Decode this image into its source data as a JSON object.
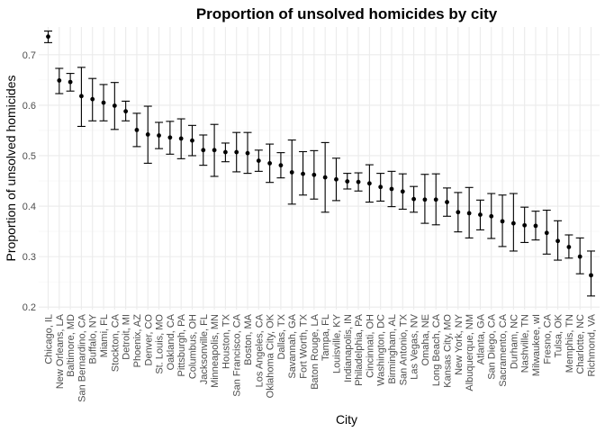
{
  "chart_data": {
    "type": "scatter",
    "title": "Proportion of unsolved homicides by city",
    "xlabel": "City",
    "ylabel": "Proportion of unsolved homicides",
    "ylim": [
      0.195,
      0.755
    ],
    "yticks": [
      0.2,
      0.3,
      0.4,
      0.5,
      0.6,
      0.7
    ],
    "grid": true,
    "legend": "none",
    "colors": {
      "point": "#000000",
      "errorbar": "#000000",
      "grid": "#ebebeb"
    },
    "categories": [
      "Chicago, IL",
      "New Orleans, LA",
      "Baltimore, MD",
      "San Bernardino, CA",
      "Buffalo, NY",
      "Miami, FL",
      "Stockton, CA",
      "Detroit, MI",
      "Phoenix, AZ",
      "Denver, CO",
      "St. Louis, MO",
      "Oakland, CA",
      "Pittsburgh, PA",
      "Columbus, OH",
      "Jacksonville, FL",
      "Minneapolis, MN",
      "Houston, TX",
      "San Francisco, CA",
      "Boston, MA",
      "Los Angeles, CA",
      "Oklahoma City, OK",
      "Dallas, TX",
      "Savannah, GA",
      "Fort Worth, TX",
      "Baton Rouge, LA",
      "Tampa, FL",
      "Louisville, KY",
      "Indianapolis, IN",
      "Philadelphia, PA",
      "Cincinnati, OH",
      "Washington, DC",
      "Birmingham, AL",
      "San Antonio, TX",
      "Las Vegas, NV",
      "Omaha, NE",
      "Long Beach, CA",
      "Kansas City, MO",
      "New York, NY",
      "Albuquerque, NM",
      "Atlanta, GA",
      "San Diego, CA",
      "Sacramento, CA",
      "Durham, NC",
      "Nashville, TN",
      "Milwaukee, wI",
      "Fresno, CA",
      "Tulsa, OK",
      "Memphis, TN",
      "Charlotte, NC",
      "Richmond, VA"
    ],
    "estimate": [
      0.736,
      0.649,
      0.646,
      0.618,
      0.612,
      0.605,
      0.599,
      0.588,
      0.551,
      0.542,
      0.54,
      0.536,
      0.534,
      0.53,
      0.511,
      0.511,
      0.507,
      0.507,
      0.505,
      0.49,
      0.485,
      0.481,
      0.467,
      0.464,
      0.462,
      0.457,
      0.453,
      0.449,
      0.448,
      0.445,
      0.438,
      0.434,
      0.429,
      0.414,
      0.413,
      0.413,
      0.408,
      0.388,
      0.386,
      0.383,
      0.38,
      0.37,
      0.366,
      0.362,
      0.361,
      0.347,
      0.331,
      0.319,
      0.3,
      0.263
    ],
    "ci_low": [
      0.724,
      0.623,
      0.628,
      0.558,
      0.569,
      0.569,
      0.552,
      0.569,
      0.518,
      0.485,
      0.514,
      0.503,
      0.494,
      0.5,
      0.481,
      0.459,
      0.488,
      0.468,
      0.465,
      0.469,
      0.447,
      0.456,
      0.404,
      0.422,
      0.414,
      0.388,
      0.411,
      0.434,
      0.43,
      0.408,
      0.41,
      0.399,
      0.394,
      0.388,
      0.366,
      0.363,
      0.38,
      0.349,
      0.337,
      0.353,
      0.336,
      0.32,
      0.311,
      0.328,
      0.333,
      0.305,
      0.293,
      0.297,
      0.266,
      0.222
    ],
    "ci_high": [
      0.747,
      0.673,
      0.663,
      0.675,
      0.653,
      0.641,
      0.645,
      0.608,
      0.584,
      0.598,
      0.566,
      0.568,
      0.573,
      0.56,
      0.541,
      0.562,
      0.525,
      0.546,
      0.546,
      0.511,
      0.523,
      0.506,
      0.531,
      0.508,
      0.51,
      0.526,
      0.495,
      0.465,
      0.466,
      0.482,
      0.465,
      0.469,
      0.464,
      0.439,
      0.463,
      0.464,
      0.436,
      0.427,
      0.437,
      0.412,
      0.425,
      0.422,
      0.425,
      0.398,
      0.39,
      0.392,
      0.371,
      0.343,
      0.337,
      0.311
    ]
  }
}
